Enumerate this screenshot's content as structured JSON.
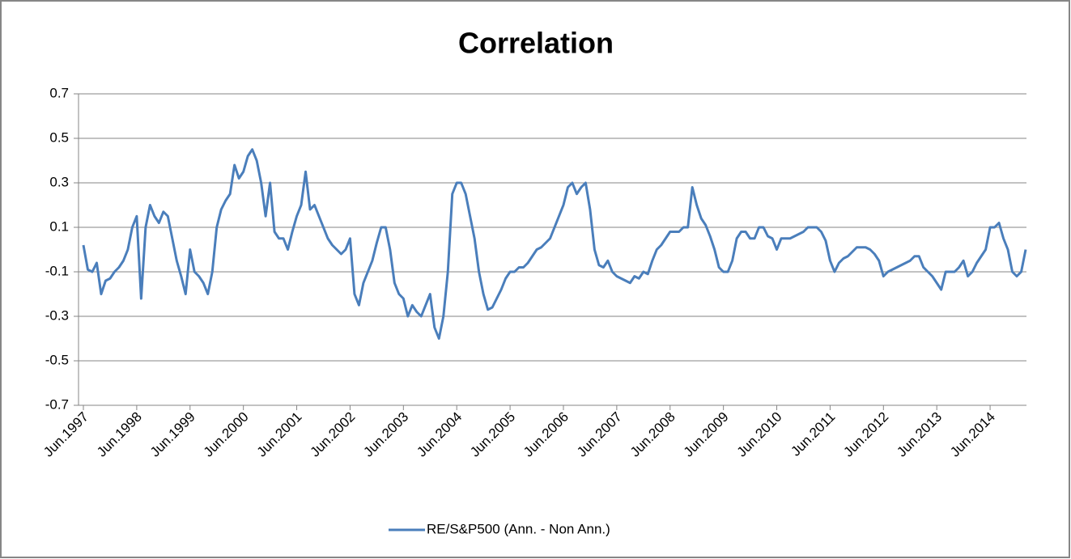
{
  "chart_data": {
    "type": "line",
    "title": "Correlation",
    "categories": [
      "Jun.1997",
      null,
      null,
      null,
      null,
      null,
      null,
      null,
      null,
      null,
      null,
      null,
      "Jun.1998",
      null,
      null,
      null,
      null,
      null,
      null,
      null,
      null,
      null,
      null,
      null,
      "Jun.1999",
      null,
      null,
      null,
      null,
      null,
      null,
      null,
      null,
      null,
      null,
      null,
      "Jun.2000",
      null,
      null,
      null,
      null,
      null,
      null,
      null,
      null,
      null,
      null,
      null,
      "Jun.2001",
      null,
      null,
      null,
      null,
      null,
      null,
      null,
      null,
      null,
      null,
      null,
      "Jun.2002",
      null,
      null,
      null,
      null,
      null,
      null,
      null,
      null,
      null,
      null,
      null,
      "Jun.2003",
      null,
      null,
      null,
      null,
      null,
      null,
      null,
      null,
      null,
      null,
      null,
      "Jun.2004",
      null,
      null,
      null,
      null,
      null,
      null,
      null,
      null,
      null,
      null,
      null,
      "Jun.2005",
      null,
      null,
      null,
      null,
      null,
      null,
      null,
      null,
      null,
      null,
      null,
      "Jun.2006",
      null,
      null,
      null,
      null,
      null,
      null,
      null,
      null,
      null,
      null,
      null,
      "Jun.2007",
      null,
      null,
      null,
      null,
      null,
      null,
      null,
      null,
      null,
      null,
      null,
      "Jun.2008",
      null,
      null,
      null,
      null,
      null,
      null,
      null,
      null,
      null,
      null,
      null,
      "Jun.2009",
      null,
      null,
      null,
      null,
      null,
      null,
      null,
      null,
      null,
      null,
      null,
      "Jun.2010",
      null,
      null,
      null,
      null,
      null,
      null,
      null,
      null,
      null,
      null,
      null,
      "Jun.2011",
      null,
      null,
      null,
      null,
      null,
      null,
      null,
      null,
      null,
      null,
      null,
      "Jun.2012",
      null,
      null,
      null,
      null,
      null,
      null,
      null,
      null,
      null,
      null,
      null,
      "Jun.2013",
      null,
      null,
      null,
      null,
      null,
      null,
      null,
      null,
      null,
      null,
      null,
      "Jun.2014",
      null,
      null,
      null,
      null,
      null,
      null,
      null,
      null
    ],
    "series": [
      {
        "name": "RE/S&P500 (Ann. - Non Ann.)",
        "color": "#4a7ebb",
        "values": [
          0.02,
          -0.09,
          -0.1,
          -0.06,
          -0.2,
          -0.14,
          -0.13,
          -0.1,
          -0.08,
          -0.05,
          0.0,
          0.1,
          0.15,
          -0.22,
          0.1,
          0.2,
          0.15,
          0.12,
          0.17,
          0.15,
          0.05,
          -0.05,
          -0.12,
          -0.2,
          0.0,
          -0.1,
          -0.12,
          -0.15,
          -0.2,
          -0.1,
          0.1,
          0.18,
          0.22,
          0.25,
          0.38,
          0.32,
          0.35,
          0.42,
          0.45,
          0.4,
          0.3,
          0.15,
          0.3,
          0.08,
          0.05,
          0.05,
          0.0,
          0.08,
          0.15,
          0.2,
          0.35,
          0.18,
          0.2,
          0.15,
          0.1,
          0.05,
          0.02,
          0.0,
          -0.02,
          0.0,
          0.05,
          -0.2,
          -0.25,
          -0.15,
          -0.1,
          -0.05,
          0.03,
          0.1,
          0.1,
          0.0,
          -0.15,
          -0.2,
          -0.22,
          -0.3,
          -0.25,
          -0.28,
          -0.3,
          -0.25,
          -0.2,
          -0.35,
          -0.4,
          -0.3,
          -0.1,
          0.25,
          0.3,
          0.3,
          0.25,
          0.15,
          0.05,
          -0.1,
          -0.2,
          -0.27,
          -0.26,
          -0.22,
          -0.18,
          -0.13,
          -0.1,
          -0.1,
          -0.08,
          -0.08,
          -0.06,
          -0.03,
          0.0,
          0.01,
          0.03,
          0.05,
          0.1,
          0.15,
          0.2,
          0.28,
          0.3,
          0.25,
          0.28,
          0.3,
          0.18,
          0.0,
          -0.07,
          -0.08,
          -0.05,
          -0.1,
          -0.12,
          -0.13,
          -0.14,
          -0.15,
          -0.12,
          -0.13,
          -0.1,
          -0.11,
          -0.05,
          0.0,
          0.02,
          0.05,
          0.08,
          0.08,
          0.08,
          0.1,
          0.1,
          0.28,
          0.2,
          0.14,
          0.11,
          0.06,
          0.0,
          -0.08,
          -0.1,
          -0.1,
          -0.05,
          0.05,
          0.08,
          0.08,
          0.05,
          0.05,
          0.1,
          0.1,
          0.06,
          0.05,
          0.0,
          0.05,
          0.05,
          0.05,
          0.06,
          0.07,
          0.08,
          0.1,
          0.1,
          0.1,
          0.08,
          0.04,
          -0.05,
          -0.1,
          -0.06,
          -0.04,
          -0.03,
          -0.01,
          0.01,
          0.01,
          0.01,
          0.0,
          -0.02,
          -0.05,
          -0.12,
          -0.1,
          -0.09,
          -0.08,
          -0.07,
          -0.06,
          -0.05,
          -0.03,
          -0.03,
          -0.08,
          -0.1,
          -0.12,
          -0.15,
          -0.18,
          -0.1,
          -0.1,
          -0.1,
          -0.08,
          -0.05,
          -0.12,
          -0.1,
          -0.06,
          -0.03,
          0.0,
          0.1,
          0.1,
          0.12,
          0.05,
          0.0,
          -0.1,
          -0.12,
          -0.1,
          0.0
        ]
      }
    ],
    "ylim": [
      -0.7,
      0.7
    ],
    "yticks": [
      -0.7,
      -0.5,
      -0.3,
      -0.1,
      0.1,
      0.3,
      0.5,
      0.7
    ],
    "grid": true,
    "legend": "bottom"
  }
}
